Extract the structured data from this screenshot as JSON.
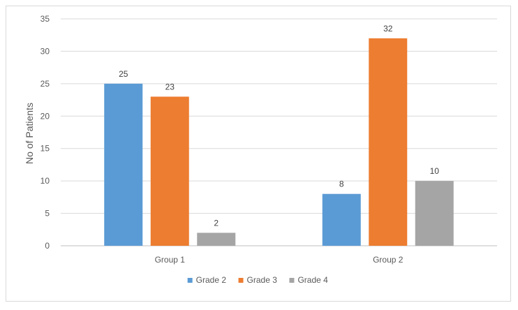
{
  "chart_data": {
    "type": "bar",
    "title": "",
    "xlabel": "",
    "ylabel": "No of Patients",
    "ylim": [
      0,
      35
    ],
    "yticks": [
      0,
      5,
      10,
      15,
      20,
      25,
      30,
      35
    ],
    "categories": [
      "Group 1",
      "Group 2"
    ],
    "series": [
      {
        "name": "Grade 2",
        "values": [
          25,
          8
        ],
        "color": "#5b9bd5"
      },
      {
        "name": "Grade 3",
        "values": [
          23,
          32
        ],
        "color": "#ed7d31"
      },
      {
        "name": "Grade 4",
        "values": [
          2,
          10
        ],
        "color": "#a5a5a5"
      }
    ],
    "data_labels": true,
    "grid": true,
    "legend_position": "bottom"
  }
}
